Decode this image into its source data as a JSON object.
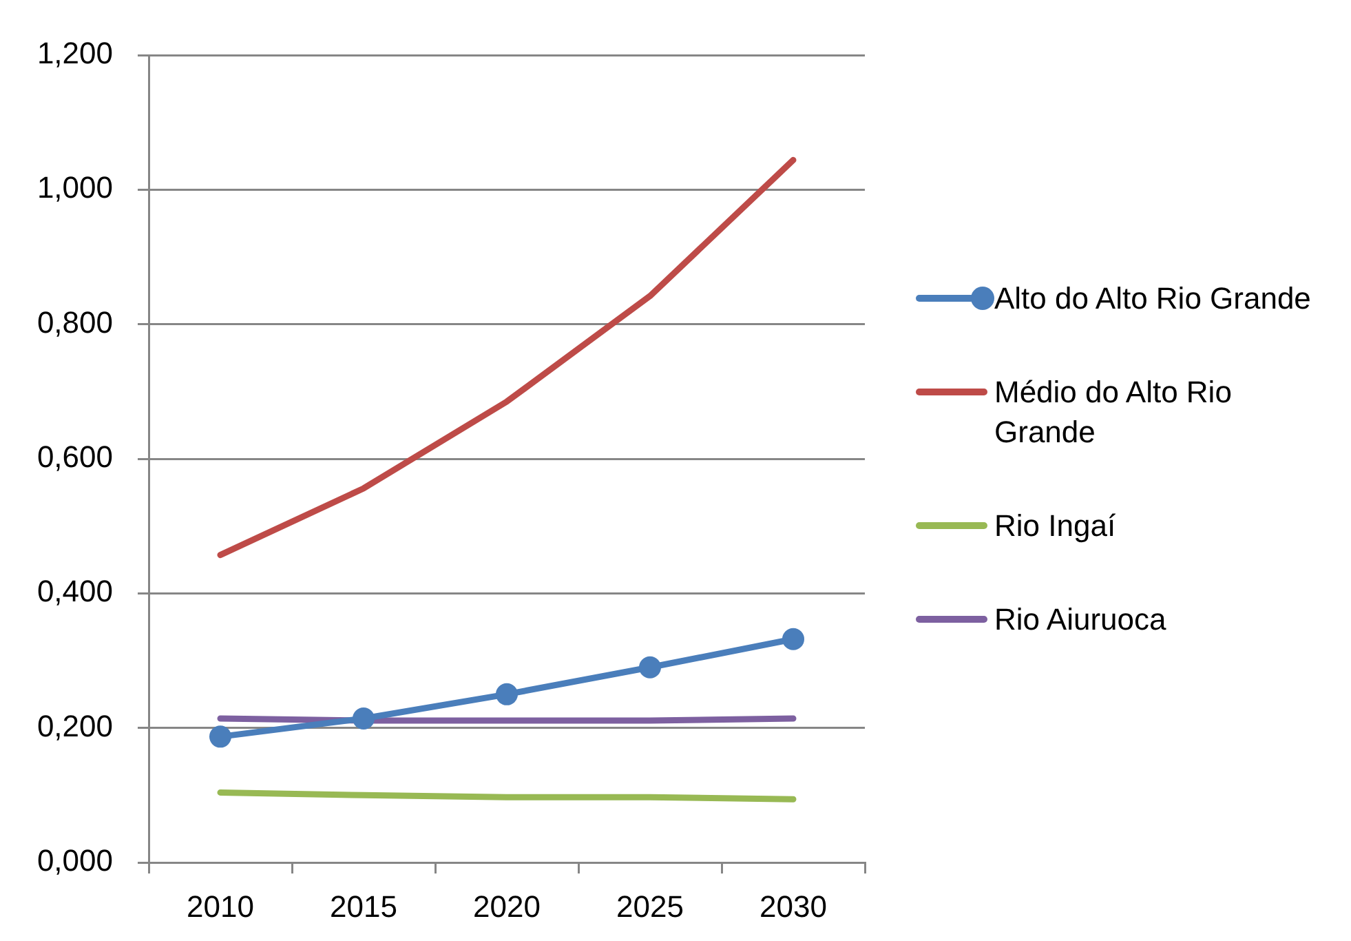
{
  "chart_data": {
    "type": "line",
    "categories": [
      "2010",
      "2015",
      "2020",
      "2025",
      "2030"
    ],
    "series": [
      {
        "name": "Alto do Alto Rio Grande",
        "color": "#4a7ebb",
        "marker": "circle",
        "values": [
          0.187,
          0.214,
          0.25,
          0.29,
          0.332
        ]
      },
      {
        "name": "Médio do Alto Rio Grande",
        "color": "#be4b48",
        "values": [
          0.457,
          0.556,
          0.685,
          0.842,
          1.044
        ]
      },
      {
        "name": "Rio Ingaí",
        "color": "#98b954",
        "values": [
          0.104,
          0.1,
          0.097,
          0.097,
          0.094
        ]
      },
      {
        "name": "Rio Aiuruoca",
        "color": "#7d60a0",
        "values": [
          0.214,
          0.211,
          0.211,
          0.211,
          0.214
        ]
      }
    ],
    "ylim": [
      0,
      1.2
    ],
    "yticks": [
      {
        "value": 0,
        "label": "0,000"
      },
      {
        "value": 0.2,
        "label": "0,200"
      },
      {
        "value": 0.4,
        "label": "0,400"
      },
      {
        "value": 0.6,
        "label": "0,600"
      },
      {
        "value": 0.8,
        "label": "0,800"
      },
      {
        "value": 1,
        "label": "1,000"
      },
      {
        "value": 1.2,
        "label": "1,200"
      }
    ],
    "grid": "y",
    "legend": "right",
    "marker": "none"
  }
}
